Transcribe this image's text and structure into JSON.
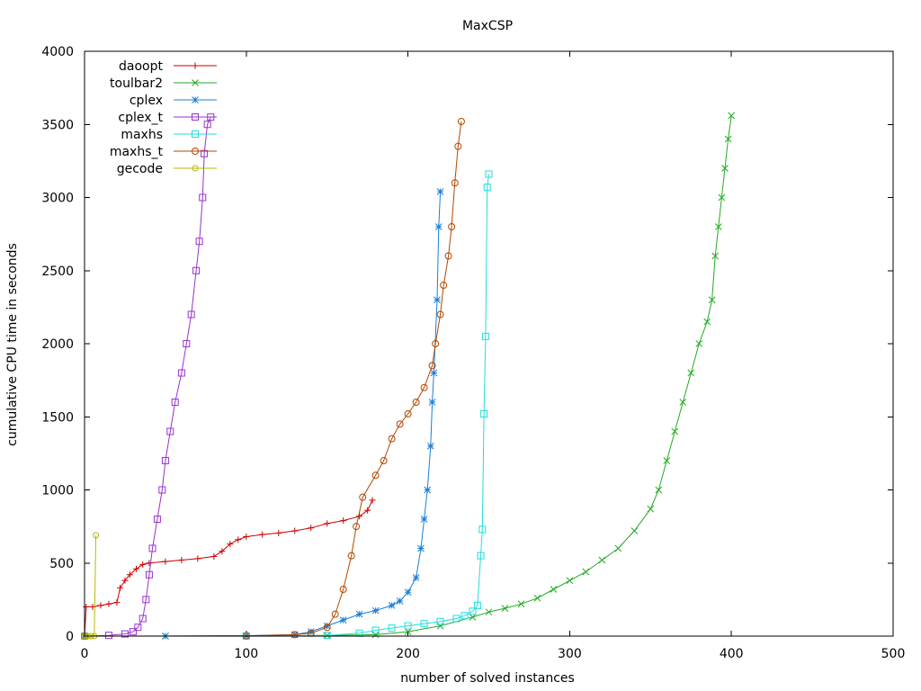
{
  "chart_data": {
    "type": "line",
    "title": "MaxCSP",
    "xlabel": "number of solved instances",
    "ylabel": "cumulative CPU time in seconds",
    "xlim": [
      0,
      500
    ],
    "ylim": [
      0,
      4000
    ],
    "xticks": [
      0,
      100,
      200,
      300,
      400,
      500
    ],
    "yticks": [
      0,
      500,
      1000,
      1500,
      2000,
      2500,
      3000,
      3500,
      4000
    ],
    "grid": false,
    "legend_position": "top-left",
    "series": [
      {
        "name": "daoopt",
        "color": "#cc0000",
        "marker": "plus",
        "points": [
          [
            0,
            0
          ],
          [
            1,
            200
          ],
          [
            5,
            200
          ],
          [
            10,
            210
          ],
          [
            15,
            220
          ],
          [
            20,
            230
          ],
          [
            22,
            330
          ],
          [
            25,
            380
          ],
          [
            28,
            420
          ],
          [
            32,
            460
          ],
          [
            36,
            490
          ],
          [
            40,
            500
          ],
          [
            50,
            510
          ],
          [
            60,
            520
          ],
          [
            70,
            530
          ],
          [
            80,
            545
          ],
          [
            85,
            580
          ],
          [
            90,
            630
          ],
          [
            95,
            660
          ],
          [
            100,
            680
          ],
          [
            110,
            695
          ],
          [
            120,
            705
          ],
          [
            130,
            720
          ],
          [
            140,
            740
          ],
          [
            150,
            770
          ],
          [
            160,
            790
          ],
          [
            170,
            820
          ],
          [
            175,
            860
          ],
          [
            178,
            930
          ]
        ]
      },
      {
        "name": "toulbar2",
        "color": "#22aa22",
        "marker": "x",
        "points": [
          [
            0,
            0
          ],
          [
            50,
            0
          ],
          [
            100,
            2
          ],
          [
            150,
            5
          ],
          [
            180,
            10
          ],
          [
            200,
            30
          ],
          [
            220,
            70
          ],
          [
            240,
            130
          ],
          [
            250,
            165
          ],
          [
            260,
            190
          ],
          [
            270,
            220
          ],
          [
            280,
            260
          ],
          [
            290,
            320
          ],
          [
            300,
            380
          ],
          [
            310,
            440
          ],
          [
            320,
            520
          ],
          [
            330,
            600
          ],
          [
            340,
            720
          ],
          [
            350,
            870
          ],
          [
            355,
            1000
          ],
          [
            360,
            1200
          ],
          [
            365,
            1400
          ],
          [
            370,
            1600
          ],
          [
            375,
            1800
          ],
          [
            380,
            2000
          ],
          [
            385,
            2150
          ],
          [
            388,
            2300
          ],
          [
            390,
            2600
          ],
          [
            392,
            2800
          ],
          [
            394,
            3000
          ],
          [
            396,
            3200
          ],
          [
            398,
            3400
          ],
          [
            400,
            3560
          ]
        ]
      },
      {
        "name": "cplex",
        "color": "#1a7fd9",
        "marker": "star",
        "points": [
          [
            0,
            0
          ],
          [
            50,
            0
          ],
          [
            100,
            3
          ],
          [
            130,
            10
          ],
          [
            140,
            30
          ],
          [
            150,
            70
          ],
          [
            160,
            110
          ],
          [
            170,
            150
          ],
          [
            180,
            175
          ],
          [
            190,
            210
          ],
          [
            195,
            240
          ],
          [
            200,
            300
          ],
          [
            205,
            400
          ],
          [
            208,
            600
          ],
          [
            210,
            800
          ],
          [
            212,
            1000
          ],
          [
            214,
            1300
          ],
          [
            215,
            1600
          ],
          [
            216,
            1800
          ],
          [
            218,
            2300
          ],
          [
            219,
            2800
          ],
          [
            220,
            3040
          ]
        ]
      },
      {
        "name": "cplex_t",
        "color": "#9933cc",
        "marker": "box",
        "points": [
          [
            0,
            0
          ],
          [
            15,
            5
          ],
          [
            25,
            15
          ],
          [
            30,
            30
          ],
          [
            33,
            60
          ],
          [
            36,
            120
          ],
          [
            38,
            250
          ],
          [
            40,
            420
          ],
          [
            42,
            600
          ],
          [
            45,
            800
          ],
          [
            48,
            1000
          ],
          [
            50,
            1200
          ],
          [
            53,
            1400
          ],
          [
            56,
            1600
          ],
          [
            60,
            1800
          ],
          [
            63,
            2000
          ],
          [
            66,
            2200
          ],
          [
            69,
            2500
          ],
          [
            71,
            2700
          ],
          [
            73,
            3000
          ],
          [
            74,
            3300
          ],
          [
            76,
            3500
          ],
          [
            78,
            3550
          ]
        ]
      },
      {
        "name": "maxhs",
        "color": "#22dddd",
        "marker": "filled-box",
        "points": [
          [
            0,
            0
          ],
          [
            100,
            0
          ],
          [
            150,
            5
          ],
          [
            170,
            20
          ],
          [
            180,
            40
          ],
          [
            190,
            55
          ],
          [
            200,
            70
          ],
          [
            210,
            85
          ],
          [
            220,
            100
          ],
          [
            230,
            120
          ],
          [
            235,
            140
          ],
          [
            240,
            170
          ],
          [
            243,
            210
          ],
          [
            245,
            550
          ],
          [
            246,
            730
          ],
          [
            247,
            1520
          ],
          [
            248,
            2050
          ],
          [
            249,
            3070
          ],
          [
            250,
            3160
          ]
        ]
      },
      {
        "name": "maxhs_t",
        "color": "#b34700",
        "marker": "circle",
        "points": [
          [
            0,
            0
          ],
          [
            100,
            2
          ],
          [
            130,
            10
          ],
          [
            140,
            20
          ],
          [
            150,
            60
          ],
          [
            155,
            150
          ],
          [
            160,
            320
          ],
          [
            165,
            550
          ],
          [
            168,
            750
          ],
          [
            172,
            950
          ],
          [
            180,
            1100
          ],
          [
            185,
            1200
          ],
          [
            190,
            1350
          ],
          [
            195,
            1450
          ],
          [
            200,
            1520
          ],
          [
            205,
            1600
          ],
          [
            210,
            1700
          ],
          [
            215,
            1850
          ],
          [
            217,
            2000
          ],
          [
            220,
            2200
          ],
          [
            222,
            2400
          ],
          [
            225,
            2600
          ],
          [
            227,
            2800
          ],
          [
            229,
            3100
          ],
          [
            231,
            3350
          ],
          [
            233,
            3520
          ]
        ]
      },
      {
        "name": "gecode",
        "color": "#b8b800",
        "marker": "filled-circle",
        "points": [
          [
            0,
            0
          ],
          [
            2,
            0
          ],
          [
            4,
            0
          ],
          [
            6,
            0
          ],
          [
            7,
            690
          ]
        ]
      }
    ]
  }
}
